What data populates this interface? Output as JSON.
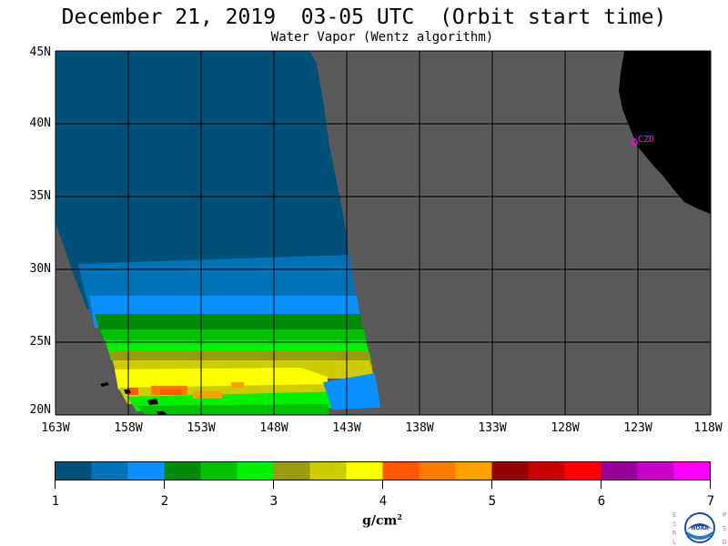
{
  "title": "December 21, 2019  03-05 UTC  (Orbit start time)",
  "subtitle": "Water Vapor (Wentz algorithm)",
  "map": {
    "lat_labels": [
      "45N",
      "40N",
      "35N",
      "30N",
      "25N",
      "20N"
    ],
    "lon_labels": [
      "163W",
      "158W",
      "153W",
      "148W",
      "143W",
      "138W",
      "133W",
      "128W",
      "123W",
      "118W"
    ],
    "station_label": "CZD",
    "land_color": "#000000",
    "nodata_color": "#5a5a5a",
    "grid_color": "#000000"
  },
  "colorbar": {
    "ticks": [
      "1",
      "2",
      "3",
      "4",
      "5",
      "6",
      "7"
    ],
    "units": "g/cm",
    "units_sup": "2",
    "colors": [
      "#00507a",
      "#0072b8",
      "#0a90ff",
      "#008a0a",
      "#00c000",
      "#00f000",
      "#9a9a10",
      "#cccc00",
      "#ffff00",
      "#ff5a00",
      "#ff7a00",
      "#ffa000",
      "#960000",
      "#c80000",
      "#ff0000",
      "#960096",
      "#c800c8",
      "#ff00ff"
    ]
  },
  "logo": {
    "left_letters": "ESRL",
    "right_letters": "PSD",
    "center_text": "NOAA"
  }
}
